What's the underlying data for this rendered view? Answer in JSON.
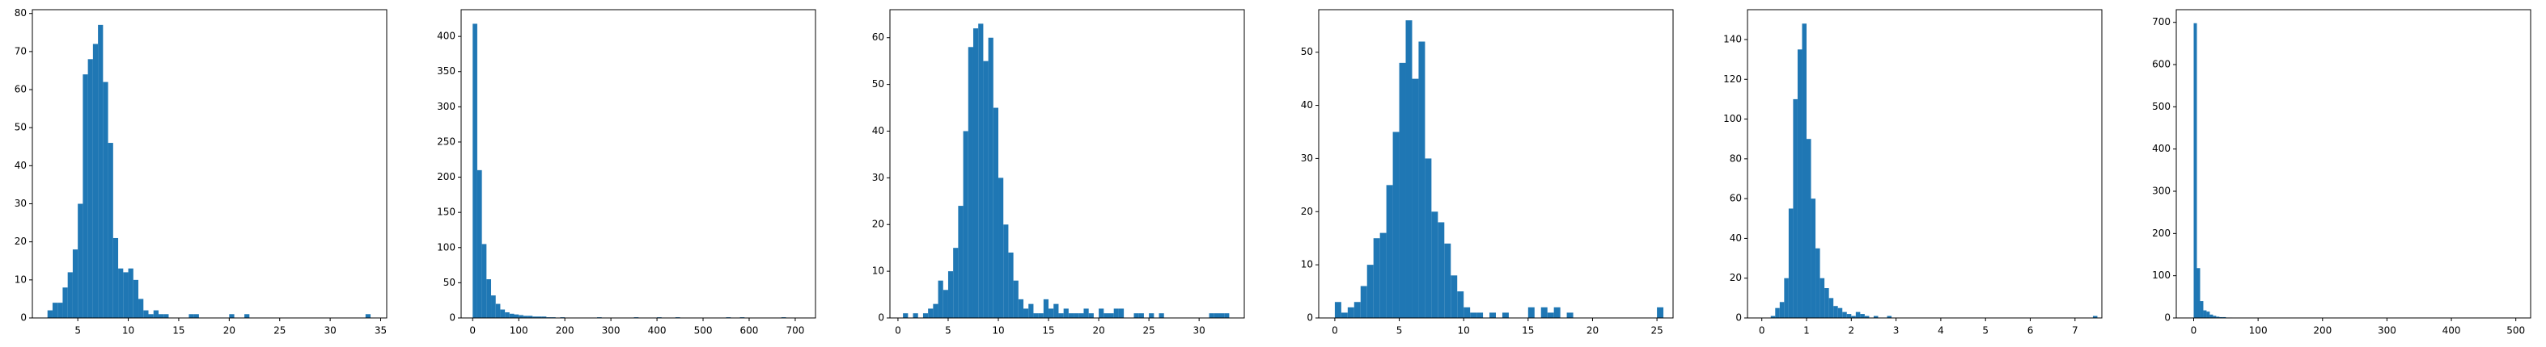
{
  "chart_data": [
    {
      "type": "histogram",
      "color": "#1f77b4",
      "bins": [
        2,
        2.5,
        3,
        3.5,
        4,
        4.5,
        5,
        5.5,
        6,
        6.5,
        7,
        7.5,
        8,
        8.5,
        9,
        9.5,
        10,
        10.5,
        11,
        11.5,
        12,
        12.5,
        13,
        13.5,
        14,
        14.5,
        15,
        15.5,
        16,
        16.5,
        17,
        17.5,
        18,
        18.5,
        19,
        19.5,
        20,
        20.5,
        21,
        21.5,
        22,
        22.5,
        23,
        23.5,
        24,
        24.5,
        25,
        25.5,
        26,
        26.5,
        27,
        27.5,
        28,
        28.5,
        29,
        29.5,
        30,
        30.5,
        31,
        31.5,
        32,
        32.5,
        33,
        33.5,
        34
      ],
      "counts": [
        2,
        4,
        4,
        8,
        12,
        18,
        30,
        64,
        68,
        72,
        77,
        62,
        46,
        21,
        13,
        12,
        13,
        10,
        5,
        2,
        1,
        2,
        1,
        1,
        0,
        0,
        0,
        0,
        1,
        1,
        0,
        0,
        0,
        0,
        0,
        0,
        1,
        0,
        0,
        1,
        0,
        0,
        0,
        0,
        0,
        0,
        0,
        0,
        0,
        0,
        0,
        0,
        0,
        0,
        0,
        0,
        0,
        0,
        0,
        0,
        0,
        0,
        0,
        1
      ],
      "xlim": [
        0.5,
        35.6
      ],
      "xticks": [
        5,
        10,
        15,
        20,
        25,
        30,
        35
      ],
      "ylim": [
        0,
        81
      ],
      "yticks": [
        0,
        10,
        20,
        30,
        40,
        50,
        60,
        70,
        80
      ]
    },
    {
      "type": "histogram",
      "color": "#1f77b4",
      "bins": [
        0,
        10,
        20,
        30,
        40,
        50,
        60,
        70,
        80,
        90,
        100,
        110,
        120,
        130,
        140,
        150,
        160,
        170,
        180,
        190,
        200,
        210,
        220,
        230,
        240,
        250,
        260,
        270,
        280,
        290,
        300,
        310,
        320,
        330,
        340,
        350,
        360,
        370,
        380,
        390,
        400,
        410,
        420,
        430,
        440,
        450,
        460,
        470,
        480,
        490,
        500,
        510,
        520,
        530,
        540,
        550,
        560,
        570,
        580,
        590,
        600,
        610,
        620,
        630,
        640,
        650,
        660,
        670,
        680
      ],
      "counts": [
        418,
        210,
        105,
        55,
        32,
        20,
        12,
        8,
        6,
        5,
        4,
        3,
        3,
        2,
        2,
        2,
        1,
        1,
        0,
        1,
        0,
        0,
        0,
        0,
        0,
        0,
        0,
        1,
        0,
        0,
        0,
        0,
        0,
        0,
        0,
        1,
        0,
        0,
        0,
        0,
        1,
        0,
        0,
        0,
        1,
        0,
        0,
        0,
        0,
        0,
        0,
        0,
        0,
        0,
        0,
        1,
        0,
        0,
        1,
        0,
        0,
        0,
        0,
        0,
        0,
        0,
        0,
        1
      ],
      "xlim": [
        -25,
        744
      ],
      "xticks": [
        0,
        100,
        200,
        300,
        400,
        500,
        600,
        700
      ],
      "ylim": [
        0,
        438
      ],
      "yticks": [
        0,
        50,
        100,
        150,
        200,
        250,
        300,
        350,
        400
      ]
    },
    {
      "type": "histogram",
      "color": "#1f77b4",
      "bins": [
        0.5,
        1,
        1.5,
        2,
        2.5,
        3,
        3.5,
        4,
        4.5,
        5,
        5.5,
        6,
        6.5,
        7,
        7.5,
        8,
        8.5,
        9,
        9.5,
        10,
        10.5,
        11,
        11.5,
        12,
        12.5,
        13,
        13.5,
        14,
        14.5,
        15,
        15.5,
        16,
        16.5,
        17,
        17.5,
        18,
        18.5,
        19,
        19.5,
        20,
        20.5,
        21,
        21.5,
        22,
        22.5,
        23,
        23.5,
        24,
        24.5,
        25,
        25.5,
        26,
        26.5,
        27,
        27.5,
        28,
        28.5,
        29,
        29.5,
        30,
        30.5,
        31,
        31.5,
        32,
        32.5,
        33
      ],
      "counts": [
        1,
        0,
        1,
        0,
        1,
        2,
        3,
        8,
        6,
        10,
        15,
        24,
        40,
        58,
        62,
        63,
        55,
        60,
        45,
        30,
        20,
        14,
        8,
        4,
        2,
        3,
        1,
        1,
        4,
        2,
        3,
        1,
        2,
        1,
        1,
        1,
        2,
        1,
        0,
        2,
        1,
        1,
        2,
        2,
        0,
        0,
        1,
        1,
        0,
        1,
        0,
        1,
        0,
        0,
        0,
        0,
        0,
        0,
        0,
        0,
        0,
        1,
        1,
        1,
        1
      ],
      "xlim": [
        -0.8,
        34.5
      ],
      "xticks": [
        0,
        5,
        10,
        15,
        20,
        25,
        30
      ],
      "ylim": [
        0,
        66
      ],
      "yticks": [
        0,
        10,
        20,
        30,
        40,
        50,
        60
      ]
    },
    {
      "type": "histogram",
      "color": "#1f77b4",
      "bins": [
        0,
        0.5,
        1,
        1.5,
        2,
        2.5,
        3,
        3.5,
        4,
        4.5,
        5,
        5.5,
        6,
        6.5,
        7,
        7.5,
        8,
        8.5,
        9,
        9.5,
        10,
        10.5,
        11,
        11.5,
        12,
        12.5,
        13,
        13.5,
        14,
        14.5,
        15,
        15.5,
        16,
        16.5,
        17,
        17.5,
        18,
        18.5,
        19,
        19.5,
        20,
        20.5,
        21,
        21.5,
        22,
        22.5,
        23,
        23.5,
        24,
        24.5,
        25,
        25.5
      ],
      "counts": [
        3,
        1,
        2,
        3,
        6,
        10,
        15,
        16,
        25,
        35,
        48,
        56,
        45,
        52,
        30,
        20,
        18,
        14,
        8,
        5,
        2,
        1,
        1,
        0,
        1,
        0,
        1,
        0,
        0,
        0,
        2,
        0,
        2,
        1,
        2,
        0,
        1,
        0,
        0,
        0,
        0,
        0,
        0,
        0,
        0,
        0,
        0,
        0,
        0,
        0,
        2
      ],
      "xlim": [
        -1.25,
        26.25
      ],
      "xticks": [
        0,
        5,
        10,
        15,
        20,
        25
      ],
      "ylim": [
        0,
        58
      ],
      "yticks": [
        0,
        10,
        20,
        30,
        40,
        50
      ]
    },
    {
      "type": "histogram",
      "color": "#1f77b4",
      "bins": [
        0.2,
        0.3,
        0.4,
        0.5,
        0.6,
        0.7,
        0.8,
        0.9,
        1.0,
        1.1,
        1.2,
        1.3,
        1.4,
        1.5,
        1.6,
        1.7,
        1.8,
        1.9,
        2.0,
        2.1,
        2.2,
        2.3,
        2.4,
        2.5,
        2.6,
        2.7,
        2.8,
        2.9,
        3.0,
        3.1,
        3.2,
        3.3,
        3.4,
        3.5,
        3.6,
        3.7,
        3.8,
        3.9,
        4.0,
        4.1,
        4.2,
        4.3,
        4.4,
        4.5,
        4.6,
        4.7,
        4.8,
        4.9,
        5.0,
        5.1,
        5.2,
        5.3,
        5.4,
        5.5,
        5.6,
        5.7,
        5.8,
        5.9,
        6.0,
        6.1,
        6.2,
        6.3,
        6.4,
        6.5,
        6.6,
        6.7,
        6.8,
        6.9,
        7.0,
        7.1,
        7.2,
        7.3,
        7.4,
        7.5,
        7.6
      ],
      "counts": [
        1,
        5,
        8,
        20,
        55,
        110,
        135,
        148,
        90,
        60,
        35,
        20,
        15,
        10,
        6,
        5,
        3,
        2,
        1,
        3,
        2,
        1,
        0,
        1,
        0,
        0,
        1,
        0,
        0,
        0,
        0,
        0,
        0,
        0,
        0,
        0,
        0,
        0,
        0,
        0,
        0,
        0,
        0,
        0,
        0,
        0,
        0,
        0,
        0,
        0,
        0,
        0,
        0,
        0,
        0,
        0,
        0,
        0,
        0,
        0,
        0,
        0,
        0,
        0,
        0,
        0,
        0,
        0,
        0,
        0,
        0,
        0,
        1,
        0
      ],
      "xlim": [
        -0.32,
        7.6
      ],
      "xticks": [
        0,
        1,
        2,
        3,
        4,
        5,
        6,
        7
      ],
      "ylim": [
        0,
        155
      ],
      "yticks": [
        0,
        20,
        40,
        60,
        80,
        100,
        120,
        140
      ]
    },
    {
      "type": "histogram",
      "color": "#1f77b4",
      "bins": [
        0,
        5,
        10,
        15,
        20,
        25,
        30,
        35,
        40,
        45,
        50,
        55,
        60
      ],
      "counts": [
        698,
        118,
        40,
        18,
        15,
        8,
        5,
        3,
        2,
        2,
        1,
        1
      ],
      "xlim": [
        -27,
        523
      ],
      "xticks": [
        0,
        100,
        200,
        300,
        400,
        500
      ],
      "ylim": [
        0,
        730
      ],
      "yticks": [
        0,
        100,
        200,
        300,
        400,
        500,
        600,
        700
      ]
    }
  ]
}
